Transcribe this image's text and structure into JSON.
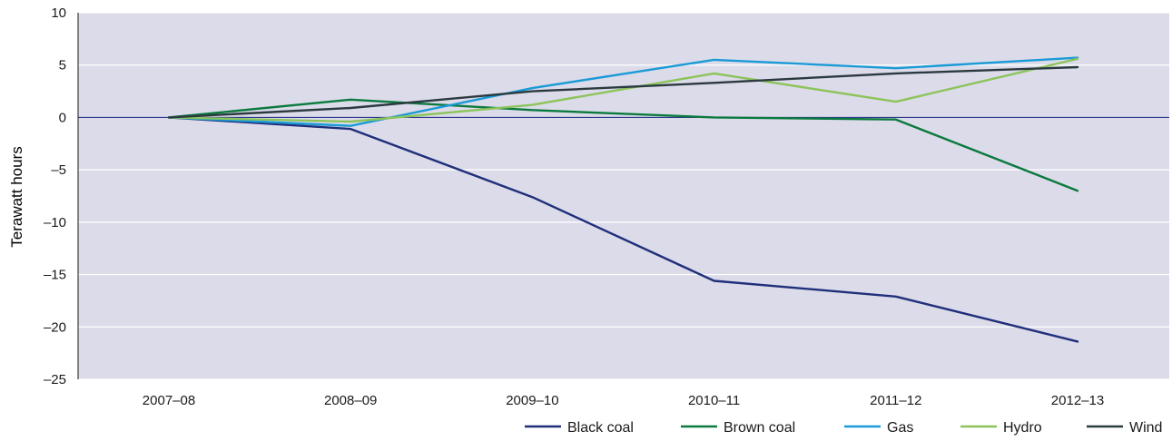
{
  "chart_data": {
    "type": "line",
    "title": "",
    "xlabel": "",
    "ylabel": "Terawatt hours",
    "categories": [
      "2007–08",
      "2008–09",
      "2009–10",
      "2010–11",
      "2011–12",
      "2012–13"
    ],
    "ylim": [
      -25,
      10
    ],
    "yticks": [
      10,
      5,
      0,
      -5,
      -10,
      -15,
      -20,
      -25
    ],
    "ytick_labels": [
      "10",
      "5",
      "0",
      "–5",
      "–10",
      "–15",
      "–20",
      "–25"
    ],
    "grid": true,
    "legend_position": "bottom-right",
    "plot_background": "#dcdbea",
    "zero_line_color": "#2e3a8c",
    "series": [
      {
        "name": "Black coal",
        "color": "#1f2f7a",
        "values": [
          0,
          -1.1,
          -7.6,
          -15.6,
          -17.1,
          -21.4
        ]
      },
      {
        "name": "Brown coal",
        "color": "#0b7a3e",
        "values": [
          0,
          1.7,
          0.7,
          0.0,
          -0.2,
          -7.0
        ]
      },
      {
        "name": "Gas",
        "color": "#1a9ad6",
        "values": [
          0,
          -0.8,
          2.8,
          5.5,
          4.7,
          5.7
        ]
      },
      {
        "name": "Hydro",
        "color": "#8cc45a",
        "values": [
          0,
          -0.4,
          1.2,
          4.2,
          1.5,
          5.6
        ]
      },
      {
        "name": "Wind",
        "color": "#2b3a3f",
        "values": [
          0,
          0.9,
          2.5,
          3.3,
          4.2,
          4.8
        ]
      }
    ]
  }
}
